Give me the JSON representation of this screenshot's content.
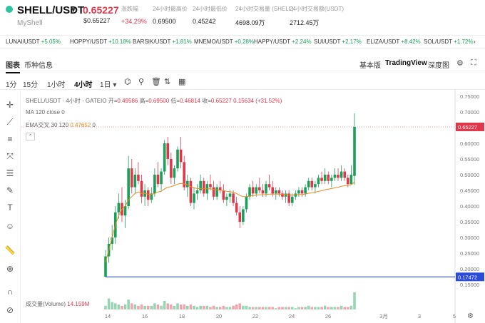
{
  "header": {
    "pair": "SHELL/USDT",
    "sub_name": "MyShell",
    "price": "0.65227",
    "price_usd": "$0.65227",
    "stats": [
      {
        "label": "涨跌幅",
        "value": "+34.29%",
        "red": true
      },
      {
        "label": "24小时最高价",
        "value": "0.69500",
        "red": false
      },
      {
        "label": "24小时最低价",
        "value": "0.45242",
        "red": false
      },
      {
        "label": "24小时交易量 (SHELL)",
        "value": "4698.09万",
        "red": false
      },
      {
        "label": "24小时交易额(USDT)",
        "value": "2712.45万",
        "red": false
      }
    ]
  },
  "tickers": [
    {
      "name": "LUNAI/USDT",
      "change": "+5.05%"
    },
    {
      "name": "HOPPY/USDT",
      "change": "+10.18%"
    },
    {
      "name": "BARSIK/USDT",
      "change": "+1.81%"
    },
    {
      "name": "MNEMO/USDT",
      "change": "+0.28%"
    },
    {
      "name": "HAPPY/USDT",
      "change": "+2.24%"
    },
    {
      "name": "SUI/USDT",
      "change": "+2.17%"
    },
    {
      "name": "ELIZA/USDT",
      "change": "+8.42%"
    },
    {
      "name": "SOL/USDT",
      "change": "+1.72%"
    }
  ],
  "tabs": {
    "chart": "图表",
    "info": "币种信息",
    "basic": "基本版",
    "tradingview": "TradingView",
    "depth": "深度图"
  },
  "timeframes": [
    "1分",
    "15分",
    "1小时",
    "4小时",
    "1日 ▾"
  ],
  "chart_legend": {
    "title": "SHELL/USDT · 4小时 · GATEIO",
    "ohlc_prefix": "开=",
    "open": "0.49586",
    "high_prefix": "高=",
    "high": "0.69500",
    "low_prefix": "低=",
    "low": "0.46814",
    "close_prefix": "收=",
    "close": "0.65227",
    "change": "0.15634 (+31.52%)",
    "ma": "MA 120 close 0",
    "ema": "EMA交叉 30 120",
    "ema_value": "0.47652",
    "ema_value2": "0",
    "volume_label": "成交量(Volume)",
    "volume_value": "14.159M"
  },
  "chart_data": {
    "type": "candlestick",
    "y_ticks": [
      "0.75000",
      "0.70000",
      "0.65000",
      "0.60000",
      "0.55000",
      "0.50000",
      "0.45000",
      "0.40000",
      "0.35000",
      "0.30000",
      "0.25000",
      "0.20000",
      "0.15000"
    ],
    "ylim": [
      0.13,
      0.77
    ],
    "x_ticks": [
      "14",
      "16",
      "18",
      "20",
      "22",
      "24",
      "26",
      "3月",
      "3",
      "5"
    ],
    "current_price_tag": "0.65227",
    "hline_tag": "0.17472",
    "hline_value": 0.17472,
    "candles": [
      [
        0.175,
        0.26,
        0.175,
        0.24
      ],
      [
        0.24,
        0.3,
        0.22,
        0.28
      ],
      [
        0.28,
        0.34,
        0.26,
        0.3
      ],
      [
        0.3,
        0.4,
        0.28,
        0.38
      ],
      [
        0.38,
        0.44,
        0.36,
        0.41
      ],
      [
        0.41,
        0.46,
        0.35,
        0.37
      ],
      [
        0.37,
        0.42,
        0.33,
        0.4
      ],
      [
        0.4,
        0.56,
        0.39,
        0.52
      ],
      [
        0.52,
        0.55,
        0.44,
        0.46
      ],
      [
        0.46,
        0.52,
        0.44,
        0.5
      ],
      [
        0.5,
        0.54,
        0.47,
        0.48
      ],
      [
        0.48,
        0.5,
        0.41,
        0.43
      ],
      [
        0.43,
        0.47,
        0.4,
        0.45
      ],
      [
        0.45,
        0.46,
        0.4,
        0.42
      ],
      [
        0.42,
        0.46,
        0.41,
        0.44
      ],
      [
        0.44,
        0.52,
        0.43,
        0.5
      ],
      [
        0.5,
        0.54,
        0.46,
        0.47
      ],
      [
        0.47,
        0.52,
        0.45,
        0.51
      ],
      [
        0.51,
        0.61,
        0.5,
        0.6
      ],
      [
        0.6,
        0.62,
        0.53,
        0.55
      ],
      [
        0.55,
        0.57,
        0.47,
        0.49
      ],
      [
        0.49,
        0.53,
        0.47,
        0.52
      ],
      [
        0.52,
        0.59,
        0.51,
        0.58
      ],
      [
        0.58,
        0.62,
        0.52,
        0.54
      ],
      [
        0.54,
        0.56,
        0.45,
        0.46
      ],
      [
        0.46,
        0.5,
        0.43,
        0.48
      ],
      [
        0.48,
        0.49,
        0.4,
        0.41
      ],
      [
        0.41,
        0.46,
        0.39,
        0.44
      ],
      [
        0.44,
        0.47,
        0.42,
        0.45
      ],
      [
        0.45,
        0.5,
        0.44,
        0.48
      ],
      [
        0.48,
        0.49,
        0.43,
        0.44
      ],
      [
        0.44,
        0.48,
        0.42,
        0.47
      ],
      [
        0.47,
        0.5,
        0.45,
        0.46
      ],
      [
        0.46,
        0.48,
        0.42,
        0.43
      ],
      [
        0.43,
        0.47,
        0.42,
        0.46
      ],
      [
        0.46,
        0.48,
        0.44,
        0.45
      ],
      [
        0.45,
        0.47,
        0.41,
        0.42
      ],
      [
        0.42,
        0.44,
        0.4,
        0.43
      ],
      [
        0.43,
        0.45,
        0.41,
        0.44
      ],
      [
        0.44,
        0.45,
        0.4,
        0.41
      ],
      [
        0.41,
        0.43,
        0.37,
        0.38
      ],
      [
        0.38,
        0.4,
        0.33,
        0.35
      ],
      [
        0.35,
        0.4,
        0.34,
        0.39
      ],
      [
        0.39,
        0.44,
        0.38,
        0.43
      ],
      [
        0.43,
        0.47,
        0.42,
        0.46
      ],
      [
        0.46,
        0.48,
        0.43,
        0.44
      ],
      [
        0.44,
        0.47,
        0.43,
        0.46
      ],
      [
        0.46,
        0.49,
        0.44,
        0.45
      ],
      [
        0.45,
        0.47,
        0.43,
        0.44
      ],
      [
        0.44,
        0.48,
        0.43,
        0.47
      ],
      [
        0.47,
        0.5,
        0.45,
        0.46
      ],
      [
        0.46,
        0.48,
        0.43,
        0.44
      ],
      [
        0.44,
        0.46,
        0.42,
        0.45
      ],
      [
        0.45,
        0.46,
        0.43,
        0.44
      ],
      [
        0.44,
        0.45,
        0.42,
        0.43
      ],
      [
        0.43,
        0.45,
        0.41,
        0.44
      ],
      [
        0.44,
        0.45,
        0.4,
        0.41
      ],
      [
        0.41,
        0.44,
        0.4,
        0.43
      ],
      [
        0.43,
        0.45,
        0.42,
        0.44
      ],
      [
        0.44,
        0.46,
        0.43,
        0.45
      ],
      [
        0.45,
        0.46,
        0.43,
        0.44
      ],
      [
        0.44,
        0.47,
        0.43,
        0.46
      ],
      [
        0.46,
        0.49,
        0.45,
        0.48
      ],
      [
        0.48,
        0.49,
        0.45,
        0.46
      ],
      [
        0.46,
        0.48,
        0.44,
        0.47
      ],
      [
        0.47,
        0.5,
        0.46,
        0.49
      ],
      [
        0.49,
        0.51,
        0.47,
        0.48
      ],
      [
        0.48,
        0.52,
        0.47,
        0.5
      ],
      [
        0.5,
        0.51,
        0.47,
        0.48
      ],
      [
        0.48,
        0.5,
        0.46,
        0.49
      ],
      [
        0.49,
        0.52,
        0.48,
        0.5
      ],
      [
        0.5,
        0.52,
        0.48,
        0.49
      ],
      [
        0.49,
        0.53,
        0.48,
        0.51
      ],
      [
        0.51,
        0.52,
        0.48,
        0.49
      ],
      [
        0.49,
        0.5,
        0.46,
        0.47
      ],
      [
        0.47,
        0.53,
        0.47,
        0.5
      ],
      [
        0.496,
        0.695,
        0.468,
        0.652
      ]
    ],
    "ema": [
      0.22,
      0.26,
      0.3,
      0.34,
      0.37,
      0.39,
      0.4,
      0.42,
      0.43,
      0.44,
      0.445,
      0.44,
      0.44,
      0.438,
      0.437,
      0.44,
      0.445,
      0.447,
      0.455,
      0.46,
      0.462,
      0.465,
      0.47,
      0.472,
      0.47,
      0.468,
      0.462,
      0.458,
      0.456,
      0.456,
      0.455,
      0.455,
      0.455,
      0.453,
      0.452,
      0.451,
      0.449,
      0.447,
      0.446,
      0.444,
      0.44,
      0.434,
      0.43,
      0.43,
      0.432,
      0.433,
      0.435,
      0.436,
      0.436,
      0.437,
      0.438,
      0.438,
      0.438,
      0.438,
      0.437,
      0.437,
      0.435,
      0.435,
      0.436,
      0.437,
      0.437,
      0.438,
      0.441,
      0.442,
      0.444,
      0.447,
      0.449,
      0.452,
      0.454,
      0.456,
      0.458,
      0.46,
      0.463,
      0.465,
      0.466,
      0.468,
      0.477
    ],
    "volumes": [
      3,
      9,
      6,
      5,
      4,
      3,
      4,
      8,
      5,
      4,
      3,
      4,
      3,
      3,
      3,
      5,
      4,
      3,
      7,
      5,
      4,
      3,
      5,
      4,
      4,
      3,
      4,
      3,
      2,
      3,
      3,
      3,
      2,
      3,
      2,
      2,
      3,
      2,
      2,
      3,
      4,
      5,
      3,
      3,
      2,
      2,
      2,
      2,
      2,
      2,
      2,
      2,
      1,
      2,
      2,
      2,
      2,
      2,
      1,
      2,
      2,
      2,
      3,
      2,
      2,
      2,
      2,
      3,
      2,
      2,
      2,
      2,
      3,
      2,
      2,
      3,
      14
    ]
  }
}
